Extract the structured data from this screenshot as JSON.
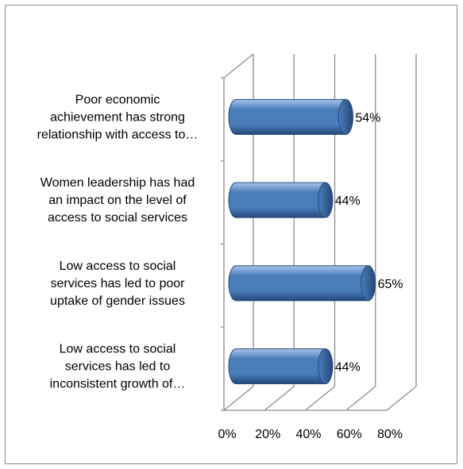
{
  "chart_data": {
    "type": "bar",
    "orientation": "horizontal",
    "three_d": true,
    "categories": [
      [
        "Poor economic",
        "achievement has strong",
        "relationship with access to…"
      ],
      [
        "Women leadership has had",
        "an impact on the level of",
        "access to social services"
      ],
      [
        "Low access to social",
        "services has led to poor",
        "uptake of gender issues"
      ],
      [
        "Low  access to social",
        "services has led to",
        "inconsistent growth of…"
      ]
    ],
    "values": [
      54,
      44,
      65,
      44
    ],
    "data_labels": [
      "54%",
      "44%",
      "65%",
      "44%"
    ],
    "x_ticks": [
      "0%",
      "20%",
      "40%",
      "60%",
      "80%"
    ],
    "xlim": [
      0,
      80
    ],
    "grid": true,
    "legend": "none",
    "bar_color": "#4a7ebb",
    "bar_highlight": "#a9c4ea",
    "bar_shadow": "#24487a",
    "gridline_color": "#8c8c8c"
  }
}
